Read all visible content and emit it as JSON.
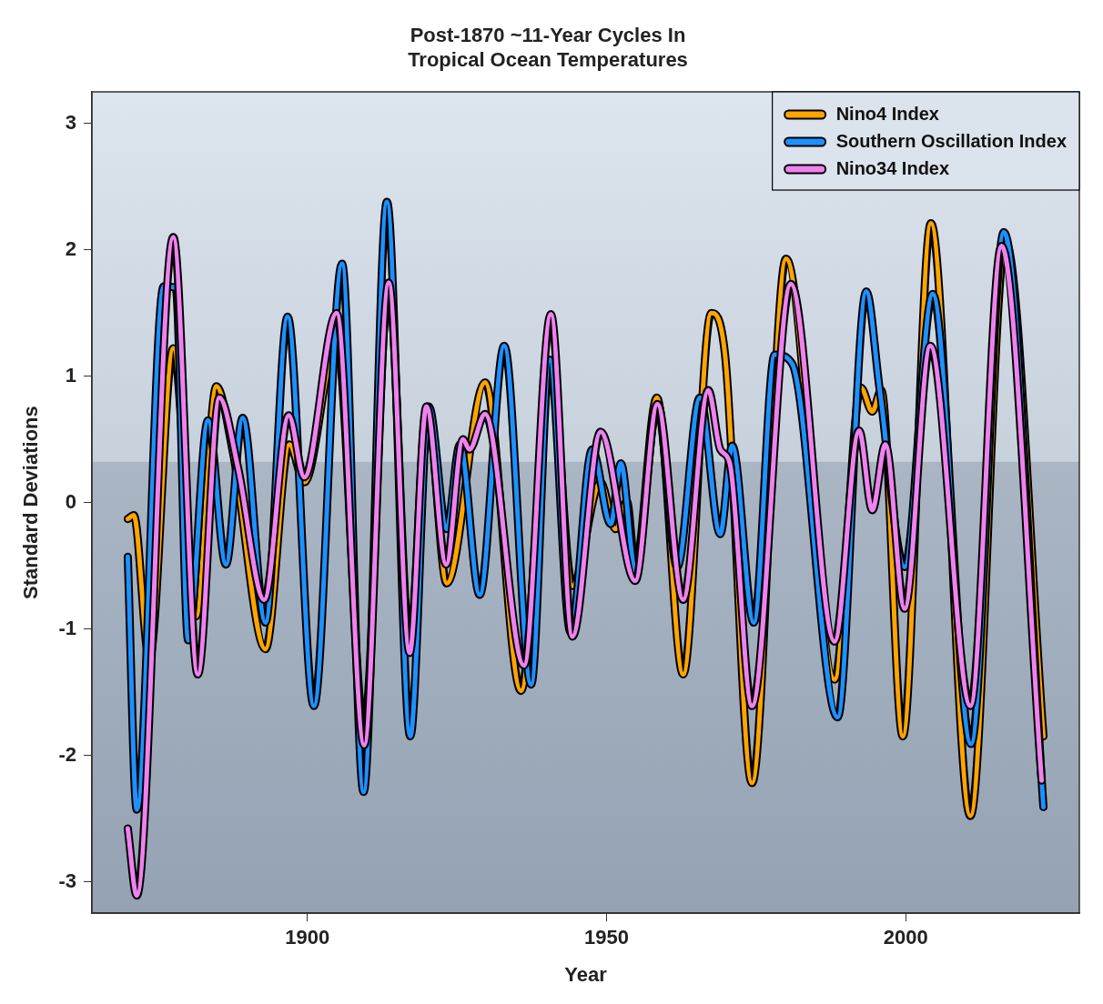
{
  "chart_data": {
    "type": "line",
    "title": [
      "Post-1870 ~11-Year Cycles In",
      "Tropical Ocean Temperatures"
    ],
    "x_label": "Year",
    "y_label": "Standard Deviations",
    "xlim": [
      1864,
      2029
    ],
    "xticks": [
      1900,
      1950,
      2000
    ],
    "ylim": [
      -3.25,
      3.25
    ],
    "yticks": [
      -3,
      -2,
      -1,
      0,
      1,
      2,
      3
    ],
    "grid": false,
    "legend": "top right",
    "series": [
      {
        "name": "Nino4 Index",
        "color": "#ffa500",
        "x": [
          1870.0,
          1871.0,
          1873.6,
          1877.6,
          1881.4,
          1884.8,
          1887.6,
          1893.0,
          1897.0,
          1899.5,
          1904.9,
          1909.5,
          1913.6,
          1917.1,
          1920.0,
          1923.3,
          1929.7,
          1935.7,
          1940.7,
          1944.3,
          1949.0,
          1951.5,
          1953.4,
          1954.8,
          1958.4,
          1962.8,
          1967.5,
          1969.8,
          1974.3,
          1980.0,
          1988.1,
          1992.5,
          1994.4,
          1995.9,
          1999.5,
          2004.2,
          2010.8,
          2016.7,
          2023.0
        ],
        "values": [
          -0.13,
          -0.1,
          -1.24,
          1.22,
          -0.9,
          0.92,
          0.39,
          -1.16,
          0.46,
          0.16,
          1.28,
          -1.77,
          1.73,
          -1.1,
          0.76,
          -0.64,
          0.95,
          -1.49,
          1.06,
          -0.66,
          0.16,
          -0.21,
          0.01,
          -0.51,
          0.83,
          -1.36,
          1.5,
          1.17,
          -2.22,
          1.93,
          -1.4,
          0.91,
          0.72,
          0.89,
          -1.85,
          2.21,
          -2.48,
          2.06,
          -1.85
        ]
      },
      {
        "name": "Southern Oscillation Index",
        "color": "#1e90ff",
        "x": [
          1870.0,
          1871.5,
          1876.0,
          1878.0,
          1880.1,
          1883.4,
          1886.4,
          1889.2,
          1893.0,
          1896.7,
          1901.1,
          1905.8,
          1909.4,
          1913.3,
          1917.2,
          1920.3,
          1923.3,
          1925.5,
          1928.8,
          1932.9,
          1937.4,
          1940.5,
          1944.0,
          1947.6,
          1950.7,
          1952.4,
          1954.8,
          1958.5,
          1961.8,
          1965.6,
          1969.0,
          1971.0,
          1974.6,
          1978.1,
          1981.0,
          1988.6,
          1993.4,
          1995.6,
          1999.8,
          2004.5,
          2010.9,
          2016.4,
          2023.0
        ],
        "values": [
          -0.43,
          -2.43,
          1.71,
          1.7,
          -1.09,
          0.65,
          -0.49,
          0.67,
          -0.95,
          1.47,
          -1.61,
          1.89,
          -2.29,
          2.38,
          -1.85,
          0.76,
          -0.21,
          0.46,
          -0.73,
          1.24,
          -1.44,
          1.13,
          -1.03,
          0.42,
          -0.17,
          0.31,
          -0.54,
          0.76,
          -0.51,
          0.83,
          -0.25,
          0.45,
          -0.95,
          1.17,
          1.1,
          -1.7,
          1.67,
          0.91,
          -0.51,
          1.65,
          -1.91,
          2.14,
          -2.41
        ]
      },
      {
        "name": "Nino34 Index",
        "color": "#ee82ee",
        "x": [
          1870.0,
          1871.5,
          1877.6,
          1881.7,
          1885.3,
          1888.4,
          1892.8,
          1896.9,
          1899.5,
          1904.9,
          1909.5,
          1913.6,
          1917.1,
          1919.9,
          1923.2,
          1926.0,
          1927.1,
          1929.7,
          1936.2,
          1940.7,
          1944.3,
          1949.0,
          1954.8,
          1958.5,
          1962.8,
          1967.0,
          1969.0,
          1970.6,
          1974.3,
          1980.8,
          1988.1,
          1992.2,
          1994.4,
          1996.6,
          1999.8,
          2004.1,
          2010.8,
          2016.0,
          2022.7
        ],
        "values": [
          -2.58,
          -3.11,
          2.1,
          -1.36,
          0.83,
          0.28,
          -0.77,
          0.69,
          0.2,
          1.5,
          -1.92,
          1.74,
          -1.19,
          0.76,
          -0.49,
          0.5,
          0.42,
          0.7,
          -1.29,
          1.49,
          -1.06,
          0.56,
          -0.62,
          0.78,
          -0.77,
          0.89,
          0.42,
          0.31,
          -1.61,
          1.73,
          -1.1,
          0.57,
          -0.06,
          0.46,
          -0.84,
          1.24,
          -1.61,
          2.03,
          -2.2
        ]
      }
    ]
  }
}
